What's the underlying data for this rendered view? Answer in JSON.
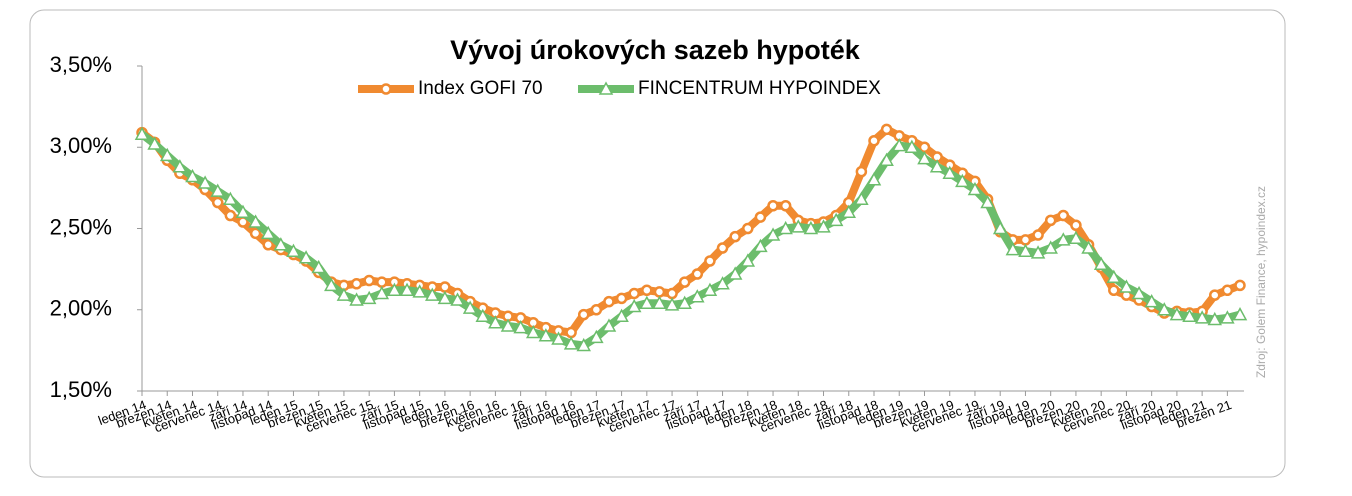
{
  "chart_data": {
    "type": "line",
    "title": "Vývoj úrokových sazeb hypoték",
    "source": "Zdroj: Golem Finance,  hypoindex.cz",
    "categories": [
      "leden 14",
      null,
      "březen 14",
      null,
      "květen 14",
      null,
      "červenec 14",
      null,
      "září 14",
      null,
      "listopad 14",
      null,
      "leden 15",
      null,
      "březen 15",
      null,
      "květen 15",
      null,
      "červenec 15",
      null,
      "září 15",
      null,
      "listopad 15",
      null,
      "leden 16",
      null,
      "březen 16",
      null,
      "květen 16",
      null,
      "červenec 16",
      null,
      "září 16",
      null,
      "listopad 16",
      null,
      "leden 17",
      null,
      "březen 17",
      null,
      "květen 17",
      null,
      "červenec 17",
      null,
      "září 17",
      null,
      "listopad 17",
      null,
      "leden 18",
      null,
      "březen 18",
      null,
      "květen 18",
      null,
      "červenec 18",
      null,
      "září 18",
      null,
      "listopad 18",
      null,
      "leden 19",
      null,
      "březen 19",
      null,
      "květen 19",
      null,
      "červenec 19",
      null,
      "září 19",
      null,
      "listopad 19",
      null,
      "leden 20",
      null,
      "březen 20",
      null,
      "květen 20",
      null,
      "červenec 20",
      null,
      "září 20",
      null,
      "listopad 20",
      null,
      "leden 21",
      null,
      "březen 21",
      null
    ],
    "series": [
      {
        "name": "Index GOFI 70",
        "color": "#f08a30",
        "marker": "circle",
        "values": [
          3.09,
          3.03,
          2.92,
          2.84,
          2.8,
          2.74,
          2.66,
          2.58,
          2.54,
          2.47,
          2.4,
          2.37,
          2.34,
          2.3,
          2.23,
          2.17,
          2.15,
          2.16,
          2.18,
          2.17,
          2.17,
          2.16,
          2.15,
          2.14,
          2.14,
          2.1,
          2.05,
          2.01,
          1.98,
          1.96,
          1.95,
          1.92,
          1.89,
          1.87,
          1.86,
          1.97,
          2.0,
          2.05,
          2.07,
          2.1,
          2.12,
          2.11,
          2.1,
          2.17,
          2.22,
          2.3,
          2.38,
          2.45,
          2.5,
          2.57,
          2.64,
          2.64,
          2.55,
          2.53,
          2.54,
          2.58,
          2.66,
          2.85,
          3.04,
          3.11,
          3.07,
          3.04,
          3.0,
          2.94,
          2.89,
          2.84,
          2.79,
          2.68,
          2.48,
          2.43,
          2.43,
          2.46,
          2.55,
          2.58,
          2.52,
          2.4,
          2.26,
          2.12,
          2.09,
          2.06,
          2.02,
          1.98,
          1.99,
          1.98,
          1.99,
          2.09,
          2.12,
          2.15
        ]
      },
      {
        "name": "FINCENTRUM HYPOINDEX",
        "color": "#6cbd6c",
        "marker": "triangle",
        "values": [
          3.08,
          3.02,
          2.95,
          2.88,
          2.82,
          2.78,
          2.73,
          2.68,
          2.6,
          2.54,
          2.47,
          2.4,
          2.36,
          2.32,
          2.26,
          2.15,
          2.09,
          2.06,
          2.07,
          2.1,
          2.12,
          2.12,
          2.11,
          2.09,
          2.07,
          2.06,
          2.01,
          1.96,
          1.92,
          1.9,
          1.89,
          1.86,
          1.84,
          1.82,
          1.79,
          1.78,
          1.83,
          1.9,
          1.96,
          2.02,
          2.04,
          2.04,
          2.03,
          2.04,
          2.08,
          2.12,
          2.16,
          2.22,
          2.3,
          2.39,
          2.46,
          2.5,
          2.51,
          2.5,
          2.51,
          2.55,
          2.6,
          2.68,
          2.8,
          2.92,
          3.01,
          3.0,
          2.93,
          2.88,
          2.84,
          2.79,
          2.74,
          2.66,
          2.5,
          2.37,
          2.36,
          2.35,
          2.38,
          2.43,
          2.44,
          2.38,
          2.28,
          2.2,
          2.14,
          2.1,
          2.05,
          2.0,
          1.97,
          1.96,
          1.95,
          1.94,
          1.95,
          1.97
        ]
      }
    ],
    "ylim": [
      1.5,
      3.5
    ],
    "yticks": [
      {
        "value": 1.5,
        "label": "1,50%"
      },
      {
        "value": 2,
        "label": "2,00%"
      },
      {
        "value": 2.5,
        "label": "2,50%"
      },
      {
        "value": 3,
        "label": "3,00%"
      },
      {
        "value": 3.5,
        "label": "3,50%"
      }
    ],
    "grid": false
  }
}
